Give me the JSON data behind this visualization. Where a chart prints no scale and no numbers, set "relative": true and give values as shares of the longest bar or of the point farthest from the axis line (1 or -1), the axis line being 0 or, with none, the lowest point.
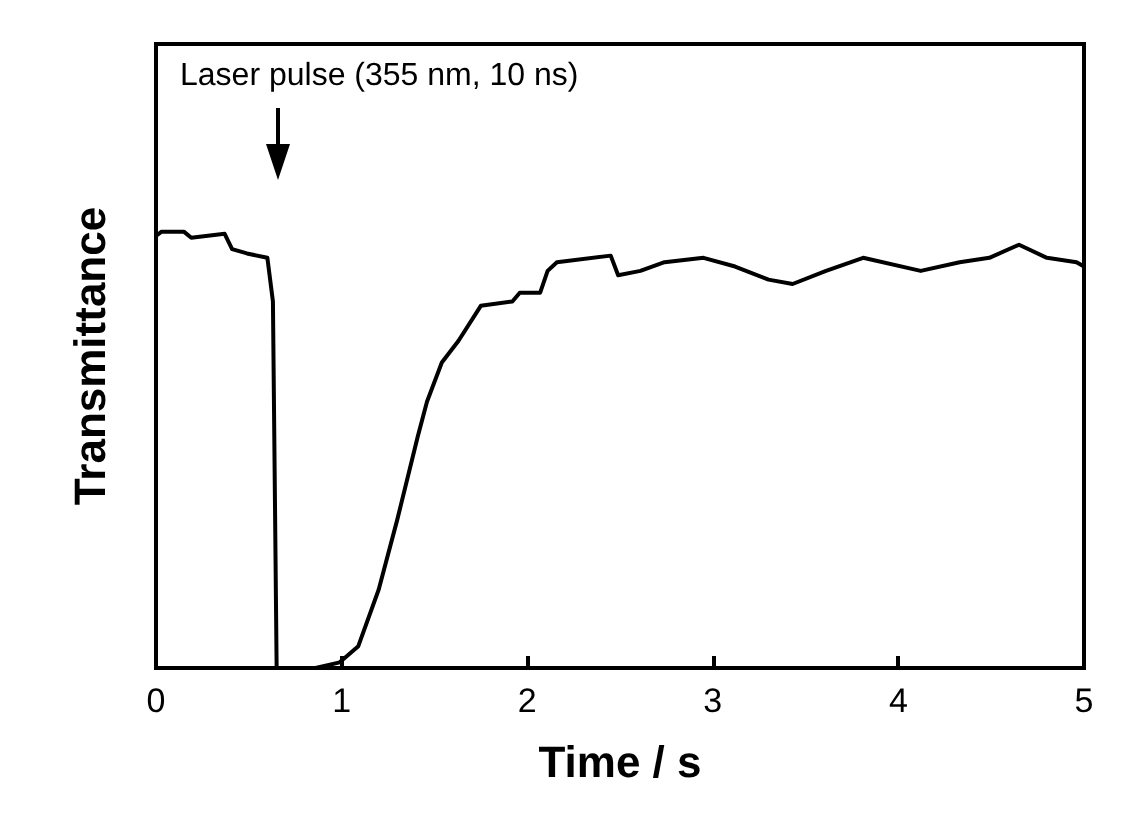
{
  "chart_data": {
    "type": "line",
    "relative": true,
    "xlabel": "Time / s",
    "ylabel": "Transmittance",
    "xlim": [
      0,
      5
    ],
    "xticks": [
      0,
      1,
      2,
      3,
      4,
      5
    ],
    "grid": false,
    "marker": "none",
    "line_style": "solid",
    "annotations": [
      "Laser pulse (355 nm, 10 ns)"
    ],
    "series": [
      {
        "color": "#000000",
        "x": [
          0,
          0.03,
          0.15,
          0.19,
          0.37,
          0.41,
          0.49,
          0.6,
          0.63,
          0.65,
          0.86,
          0.99,
          1.09,
          1.2,
          1.3,
          1.41,
          1.46,
          1.54,
          1.63,
          1.75,
          1.92,
          1.96,
          2.07,
          2.11,
          2.16,
          2.45,
          2.49,
          2.61,
          2.74,
          2.95,
          3.12,
          3.3,
          3.43,
          3.61,
          3.81,
          4.12,
          4.33,
          4.49,
          4.65,
          4.8,
          4.96,
          5
        ],
        "values": [
          0.99,
          1,
          1,
          0.986,
          0.995,
          0.96,
          0.95,
          0.94,
          0.84,
          0,
          0,
          0.013,
          0.05,
          0.18,
          0.34,
          0.53,
          0.61,
          0.7,
          0.75,
          0.83,
          0.84,
          0.86,
          0.86,
          0.91,
          0.93,
          0.945,
          0.9,
          0.91,
          0.93,
          0.94,
          0.92,
          0.89,
          0.88,
          0.91,
          0.94,
          0.91,
          0.93,
          0.94,
          0.97,
          0.94,
          0.93,
          0.92
        ]
      }
    ]
  }
}
